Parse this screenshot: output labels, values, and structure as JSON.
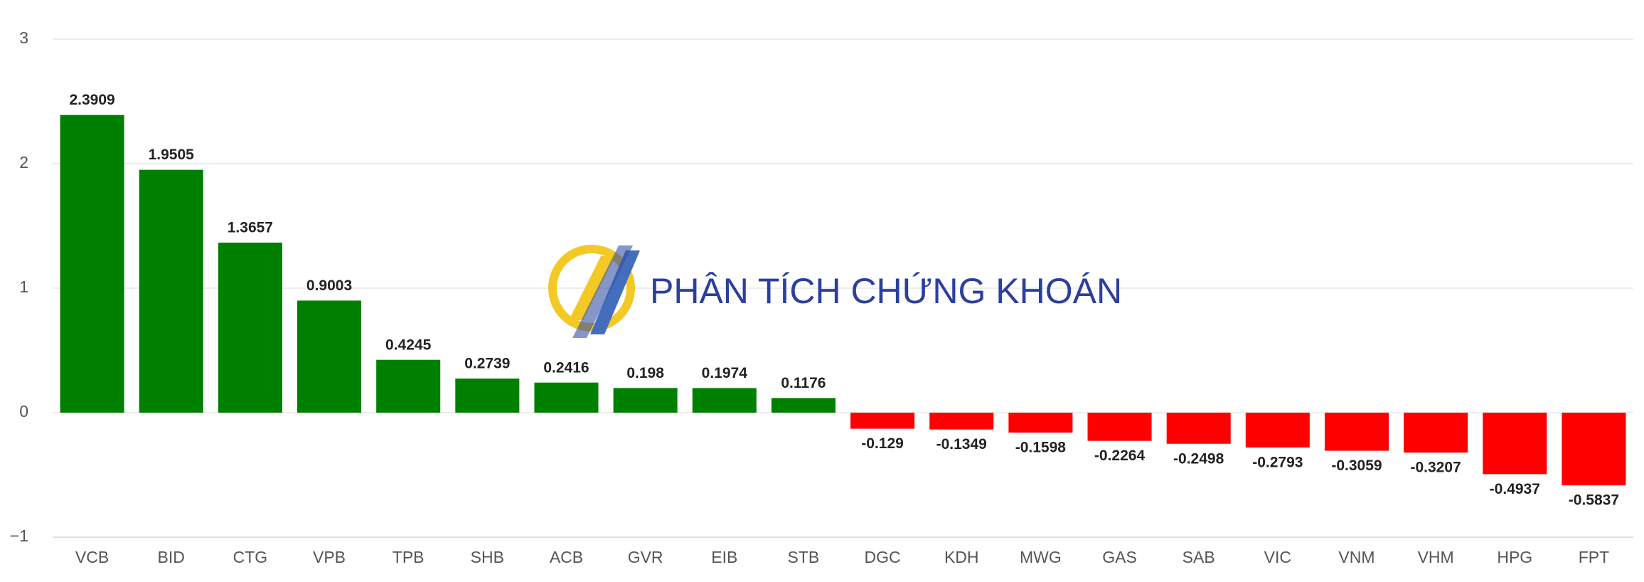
{
  "chart_data": {
    "type": "bar",
    "watermark": "PHÂN TÍCH CHỨNG KHOÁN",
    "categories": [
      "VCB",
      "BID",
      "CTG",
      "VPB",
      "TPB",
      "SHB",
      "ACB",
      "GVR",
      "EIB",
      "STB",
      "DGC",
      "KDH",
      "MWG",
      "GAS",
      "SAB",
      "VIC",
      "VNM",
      "VHM",
      "HPG",
      "FPT"
    ],
    "values": [
      2.3909,
      1.9505,
      1.3657,
      0.9003,
      0.4245,
      0.2739,
      0.2416,
      0.198,
      0.1974,
      0.1176,
      -0.129,
      -0.1349,
      -0.1598,
      -0.2264,
      -0.2498,
      -0.2793,
      -0.3059,
      -0.3207,
      -0.4937,
      -0.5837
    ],
    "positive_color": "#008000",
    "negative_color": "#ff0000",
    "ylim": [
      -1,
      3
    ],
    "yticks": [
      {
        "value": -1,
        "label": "−1"
      },
      0,
      1,
      2,
      3
    ],
    "grid": true
  }
}
